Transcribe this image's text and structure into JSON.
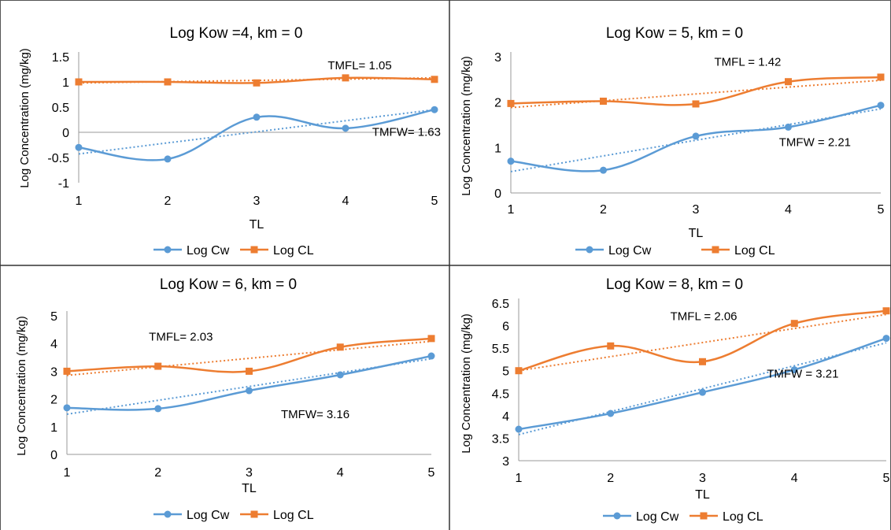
{
  "chart_data": [
    {
      "type": "line",
      "title": "Log Kow =4, km = 0",
      "xlabel": "TL",
      "ylabel": "Log Concentration (mg/kg)",
      "x": [
        1,
        2,
        3,
        4,
        5
      ],
      "ylim": [
        -1,
        1.5
      ],
      "yticks": [
        "-1",
        "-0.5",
        "0",
        "0.5",
        "1",
        "1.5"
      ],
      "xticks": [
        "1",
        "2",
        "3",
        "4",
        "5"
      ],
      "series": [
        {
          "name": "Log Cw",
          "values": [
            -0.3,
            -0.53,
            0.3,
            0.08,
            0.45
          ],
          "color": "#5b9bd5",
          "marker": "circle",
          "trend": [
            -0.43,
            0.45
          ]
        },
        {
          "name": "Log CL",
          "values": [
            1.0,
            1.0,
            0.98,
            1.08,
            1.05
          ],
          "color": "#ed7d31",
          "marker": "square",
          "trend": [
            0.98,
            1.08
          ]
        }
      ],
      "annotations": [
        {
          "text": "TMFL= 1.05",
          "x": 3.8,
          "y": 1.25
        },
        {
          "text": "TMFW= 1.63",
          "x": 4.3,
          "y": -0.07
        }
      ],
      "grid": false,
      "legend": "bottom"
    },
    {
      "type": "line",
      "title": "Log Kow = 5, km = 0",
      "xlabel": "TL",
      "ylabel": "Log Concentration (mg/kg)",
      "x": [
        1,
        2,
        3,
        4,
        5
      ],
      "ylim": [
        0,
        3
      ],
      "yticks": [
        "0",
        "1",
        "2",
        "3"
      ],
      "xticks": [
        "1",
        "2",
        "3",
        "4",
        "5"
      ],
      "series": [
        {
          "name": "Log Cw",
          "values": [
            0.7,
            0.5,
            1.25,
            1.45,
            1.93
          ],
          "color": "#5b9bd5",
          "marker": "circle",
          "trend": [
            0.47,
            1.85
          ]
        },
        {
          "name": "Log CL",
          "values": [
            1.97,
            2.02,
            1.96,
            2.45,
            2.55
          ],
          "color": "#ed7d31",
          "marker": "square",
          "trend": [
            1.88,
            2.48
          ]
        }
      ],
      "annotations": [
        {
          "text": "TMFL = 1.42",
          "x": 3.2,
          "y": 2.8
        },
        {
          "text": "TMFW = 2.21",
          "x": 3.9,
          "y": 1.03
        }
      ],
      "grid": false,
      "legend": "bottom"
    },
    {
      "type": "line",
      "title": "Log Kow = 6, km = 0",
      "xlabel": "TL",
      "ylabel": "Log Concentration (mg/kg)",
      "x": [
        1,
        2,
        3,
        4,
        5
      ],
      "ylim": [
        0,
        5
      ],
      "yticks": [
        "0",
        "1",
        "2",
        "3",
        "4",
        "5"
      ],
      "xticks": [
        "1",
        "2",
        "3",
        "4",
        "5"
      ],
      "series": [
        {
          "name": "Log Cw",
          "values": [
            1.68,
            1.65,
            2.3,
            2.87,
            3.55
          ],
          "color": "#5b9bd5",
          "marker": "circle",
          "trend": [
            1.45,
            3.45
          ]
        },
        {
          "name": "Log CL",
          "values": [
            3.0,
            3.18,
            3.0,
            3.87,
            4.18
          ],
          "color": "#ed7d31",
          "marker": "square",
          "trend": [
            2.85,
            4.08
          ]
        }
      ],
      "annotations": [
        {
          "text": "TMFL= 2.03",
          "x": 1.9,
          "y": 4.1
        },
        {
          "text": "TMFW= 3.16",
          "x": 3.35,
          "y": 1.3
        }
      ],
      "grid": false,
      "legend": "bottom"
    },
    {
      "type": "line",
      "title": "Log Kow = 8, km = 0",
      "xlabel": "TL",
      "ylabel": "Log Concentration (mg/kg)",
      "x": [
        1,
        2,
        3,
        4,
        5
      ],
      "ylim": [
        3,
        6.5
      ],
      "yticks": [
        "3",
        "3.5",
        "4",
        "4.5",
        "5",
        "5.5",
        "6",
        "6.5"
      ],
      "xticks": [
        "1",
        "2",
        "3",
        "4",
        "5"
      ],
      "series": [
        {
          "name": "Log Cw",
          "values": [
            3.7,
            4.05,
            4.52,
            5.02,
            5.72
          ],
          "color": "#5b9bd5",
          "marker": "circle",
          "trend": [
            3.58,
            5.62
          ]
        },
        {
          "name": "Log CL",
          "values": [
            5.0,
            5.55,
            5.2,
            6.05,
            6.33
          ],
          "color": "#ed7d31",
          "marker": "square",
          "trend": [
            5.0,
            6.25
          ]
        }
      ],
      "annotations": [
        {
          "text": "TMFL = 2.06",
          "x": 2.65,
          "y": 6.12
        },
        {
          "text": "TMFW = 3.21",
          "x": 3.7,
          "y": 4.85
        }
      ],
      "grid": false,
      "legend": "bottom"
    }
  ]
}
